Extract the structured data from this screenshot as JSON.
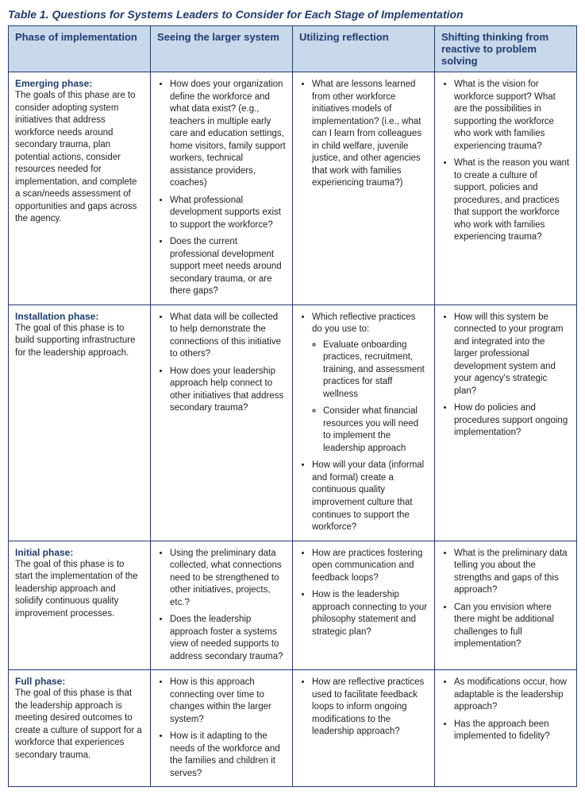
{
  "caption": "Table 1. Questions for Systems Leaders to Consider for Each Stage of Implementation",
  "headers": {
    "c1": "Phase of implementation",
    "c2": "Seeing the larger system",
    "c3": "Utilizing reflection",
    "c4": "Shifting thinking from reactive to problem solving"
  },
  "rows": [
    {
      "phase_title": "Emerging phase:",
      "phase_desc": "The goals of this phase are to consider adopting system initiatives that address workforce needs around secondary trauma, plan potential actions, consider resources needed for implementation, and complete a scan/needs assessment of opportunities and gaps across the agency.",
      "seeing": [
        "How does your organization define the workforce and what data exist? (e.g., teachers in multiple early care and education settings, home visitors, family support workers, technical assistance providers, coaches)",
        "What professional development supports exist to support the workforce?",
        "Does the current professional development support meet needs around secondary trauma, or are there gaps?"
      ],
      "reflection": [
        "What are lessons learned from other workforce initiatives models of implementation? (i.e., what can I learn from colleagues in child welfare, juvenile justice, and other agencies that work with families experiencing trauma?)"
      ],
      "shifting": [
        "What is the vision for workforce support? What are the possibilities in supporting the workforce who work with families experiencing trauma?",
        "What is the reason you want to create a culture of support, policies and procedures, and practices that support the workforce who work with families experiencing trauma?"
      ]
    },
    {
      "phase_title": "Installation phase:",
      "phase_desc": "The goal of this phase is to build supporting infrastructure for the leadership approach.",
      "seeing": [
        "What data will be collected to help demonstrate the connections of this initiative to others?",
        "How does your leadership approach help connect to other initiatives that address secondary trauma?"
      ],
      "reflection": [
        {
          "text": "Which reflective practices do you use to:",
          "sub": [
            "Evaluate onboarding practices, recruitment, training, and assessment practices for staff wellness",
            "Consider what financial resources you will need to implement the leadership approach"
          ]
        },
        "How will your data (informal and formal) create a continuous quality improvement culture that continues to support the workforce?"
      ],
      "shifting": [
        "How will this system be connected to your program and integrated into the larger professional development system and your agency's strategic plan?",
        "How do policies and procedures support ongoing implementation?"
      ]
    },
    {
      "phase_title": "Initial phase:",
      "phase_desc": "The goal of this phase is to start the implementation of the leadership approach and solidify continuous quality improvement processes.",
      "seeing": [
        "Using the preliminary data collected, what connections need to be strengthened to other initiatives, projects, etc.?",
        "Does the leadership approach foster a systems view of needed supports to address secondary trauma?"
      ],
      "reflection": [
        "How are practices fostering open communication and feedback loops?",
        "How is the leadership approach connecting to your philosophy statement and strategic plan?"
      ],
      "shifting": [
        "What is the preliminary data telling you about the strengths and gaps of this approach?",
        "Can you envision where there might be additional challenges to full implementation?"
      ]
    },
    {
      "phase_title": "Full phase:",
      "phase_desc": "The goal of this phase is that the leadership approach is meeting desired outcomes to create a culture of support for a workforce that experiences secondary trauma.",
      "seeing": [
        "How is this approach connecting over time to changes within the larger system?",
        "How is it adapting to the needs of the workforce and the families and children it serves?"
      ],
      "reflection": [
        "How are reflective practices used to facilitate feedback loops to inform ongoing modifications to the leadership approach?"
      ],
      "shifting": [
        "As modifications occur, how adaptable is the leadership approach?",
        "Has the approach been implemented to fidelity?"
      ]
    }
  ]
}
